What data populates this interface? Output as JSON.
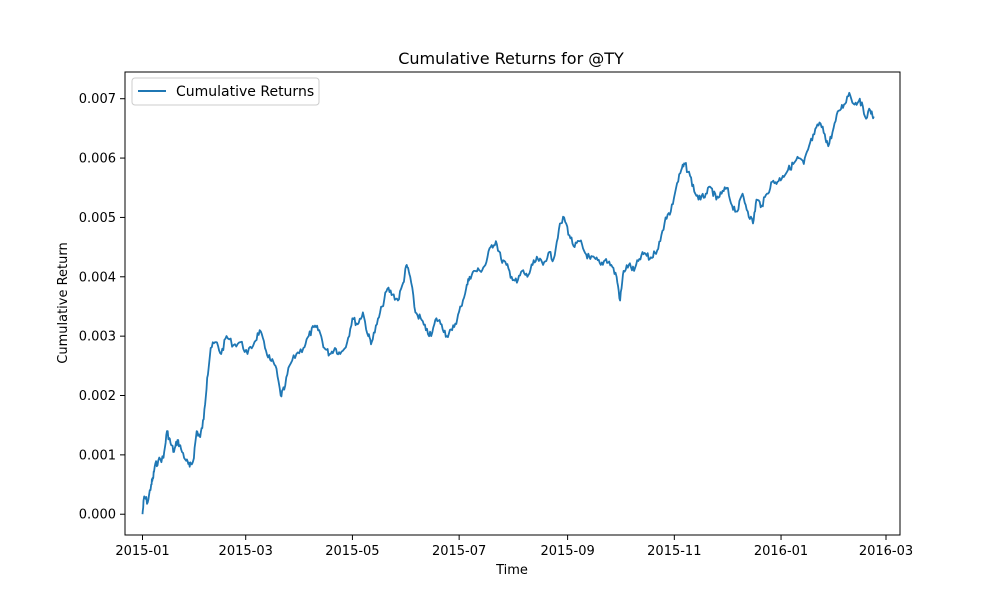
{
  "chart_data": {
    "type": "line",
    "title": "Cumulative Returns for @TY",
    "xlabel": "Time",
    "ylabel": "Cumulative Return",
    "x_ticks": [
      "2015-01",
      "2015-03",
      "2015-05",
      "2015-07",
      "2015-09",
      "2015-11",
      "2016-01",
      "2016-03"
    ],
    "y_ticks": [
      "0.000",
      "0.001",
      "0.002",
      "0.003",
      "0.004",
      "0.005",
      "0.006",
      "0.007"
    ],
    "xlim": [
      "2014-12-22",
      "2016-03-09"
    ],
    "ylim": [
      -0.00035,
      0.00745
    ],
    "grid": false,
    "legend_position": "top-left",
    "series": [
      {
        "name": "Cumulative Returns",
        "color": "#1f77b4",
        "points": [
          [
            "2015-01-01",
            0.0
          ],
          [
            "2015-01-02",
            0.0003
          ],
          [
            "2015-01-04",
            0.0002
          ],
          [
            "2015-01-06",
            0.0005
          ],
          [
            "2015-01-07",
            0.0006
          ],
          [
            "2015-01-08",
            0.0008
          ],
          [
            "2015-01-10",
            0.0009
          ],
          [
            "2015-01-13",
            0.00095
          ],
          [
            "2015-01-15",
            0.0014
          ],
          [
            "2015-01-17",
            0.0012
          ],
          [
            "2015-01-19",
            0.00105
          ],
          [
            "2015-01-21",
            0.00125
          ],
          [
            "2015-01-23",
            0.0011
          ],
          [
            "2015-01-26",
            0.0009
          ],
          [
            "2015-01-28",
            0.0008
          ],
          [
            "2015-01-30",
            0.0009
          ],
          [
            "2015-02-01",
            0.0014
          ],
          [
            "2015-02-03",
            0.0013
          ],
          [
            "2015-02-05",
            0.0016
          ],
          [
            "2015-02-07",
            0.0023
          ],
          [
            "2015-02-09",
            0.0028
          ],
          [
            "2015-02-12",
            0.0029
          ],
          [
            "2015-02-15",
            0.0027
          ],
          [
            "2015-02-18",
            0.003
          ],
          [
            "2015-02-22",
            0.00285
          ],
          [
            "2015-02-26",
            0.0029
          ],
          [
            "2015-03-02",
            0.0027
          ],
          [
            "2015-03-06",
            0.0029
          ],
          [
            "2015-03-09",
            0.0031
          ],
          [
            "2015-03-12",
            0.0028
          ],
          [
            "2015-03-15",
            0.0026
          ],
          [
            "2015-03-18",
            0.0025
          ],
          [
            "2015-03-21",
            0.002
          ],
          [
            "2015-03-23",
            0.0021
          ],
          [
            "2015-03-26",
            0.0025
          ],
          [
            "2015-03-30",
            0.0027
          ],
          [
            "2015-04-03",
            0.0028
          ],
          [
            "2015-04-06",
            0.003
          ],
          [
            "2015-04-09",
            0.00315
          ],
          [
            "2015-04-12",
            0.0031
          ],
          [
            "2015-04-15",
            0.0028
          ],
          [
            "2015-04-18",
            0.0027
          ],
          [
            "2015-04-21",
            0.0028
          ],
          [
            "2015-04-24",
            0.0027
          ],
          [
            "2015-04-28",
            0.0029
          ],
          [
            "2015-05-01",
            0.0033
          ],
          [
            "2015-05-04",
            0.0032
          ],
          [
            "2015-05-07",
            0.0034
          ],
          [
            "2015-05-10",
            0.003
          ],
          [
            "2015-05-12",
            0.0029
          ],
          [
            "2015-05-15",
            0.0032
          ],
          [
            "2015-05-18",
            0.0035
          ],
          [
            "2015-05-21",
            0.0038
          ],
          [
            "2015-05-24",
            0.0037
          ],
          [
            "2015-05-27",
            0.0036
          ],
          [
            "2015-05-30",
            0.0039
          ],
          [
            "2015-06-01",
            0.0042
          ],
          [
            "2015-06-03",
            0.004
          ],
          [
            "2015-06-06",
            0.0034
          ],
          [
            "2015-06-09",
            0.0033
          ],
          [
            "2015-06-12",
            0.0031
          ],
          [
            "2015-06-15",
            0.003
          ],
          [
            "2015-06-18",
            0.0033
          ],
          [
            "2015-06-21",
            0.0032
          ],
          [
            "2015-06-24",
            0.003
          ],
          [
            "2015-06-27",
            0.0031
          ],
          [
            "2015-06-30",
            0.0033
          ],
          [
            "2015-07-02",
            0.0035
          ],
          [
            "2015-07-05",
            0.0038
          ],
          [
            "2015-07-07",
            0.004
          ],
          [
            "2015-07-10",
            0.0041
          ],
          [
            "2015-07-13",
            0.0041
          ],
          [
            "2015-07-16",
            0.0042
          ],
          [
            "2015-07-19",
            0.0045
          ],
          [
            "2015-07-22",
            0.0046
          ],
          [
            "2015-07-25",
            0.0043
          ],
          [
            "2015-07-28",
            0.0042
          ],
          [
            "2015-07-31",
            0.004
          ],
          [
            "2015-08-03",
            0.0039
          ],
          [
            "2015-08-06",
            0.0041
          ],
          [
            "2015-08-09",
            0.004
          ],
          [
            "2015-08-12",
            0.0042
          ],
          [
            "2015-08-15",
            0.0043
          ],
          [
            "2015-08-18",
            0.0042
          ],
          [
            "2015-08-21",
            0.0044
          ],
          [
            "2015-08-24",
            0.0043
          ],
          [
            "2015-08-27",
            0.0048
          ],
          [
            "2015-08-30",
            0.005
          ],
          [
            "2015-09-02",
            0.0047
          ],
          [
            "2015-09-05",
            0.0045
          ],
          [
            "2015-09-08",
            0.0046
          ],
          [
            "2015-09-11",
            0.0044
          ],
          [
            "2015-09-14",
            0.0043
          ],
          [
            "2015-09-17",
            0.0043
          ],
          [
            "2015-09-20",
            0.0042
          ],
          [
            "2015-09-23",
            0.0043
          ],
          [
            "2015-09-26",
            0.0042
          ],
          [
            "2015-09-29",
            0.004
          ],
          [
            "2015-10-01",
            0.0036
          ],
          [
            "2015-10-03",
            0.0041
          ],
          [
            "2015-10-06",
            0.0042
          ],
          [
            "2015-10-09",
            0.0041
          ],
          [
            "2015-10-12",
            0.0043
          ],
          [
            "2015-10-15",
            0.0044
          ],
          [
            "2015-10-18",
            0.0043
          ],
          [
            "2015-10-21",
            0.0044
          ],
          [
            "2015-10-24",
            0.0046
          ],
          [
            "2015-10-27",
            0.005
          ],
          [
            "2015-10-30",
            0.0051
          ],
          [
            "2015-11-02",
            0.0055
          ],
          [
            "2015-11-05",
            0.0058
          ],
          [
            "2015-11-07",
            0.0059
          ],
          [
            "2015-11-10",
            0.0057
          ],
          [
            "2015-11-13",
            0.0054
          ],
          [
            "2015-11-16",
            0.0053
          ],
          [
            "2015-11-19",
            0.0054
          ],
          [
            "2015-11-22",
            0.0055
          ],
          [
            "2015-11-25",
            0.0053
          ],
          [
            "2015-11-28",
            0.0054
          ],
          [
            "2015-12-01",
            0.0055
          ],
          [
            "2015-12-04",
            0.0052
          ],
          [
            "2015-12-07",
            0.0051
          ],
          [
            "2015-12-10",
            0.0054
          ],
          [
            "2015-12-13",
            0.0051
          ],
          [
            "2015-12-16",
            0.0049
          ],
          [
            "2015-12-18",
            0.0053
          ],
          [
            "2015-12-21",
            0.0052
          ],
          [
            "2015-12-24",
            0.0054
          ],
          [
            "2015-12-27",
            0.0056
          ],
          [
            "2015-12-30",
            0.0056
          ],
          [
            "2016-01-02",
            0.0057
          ],
          [
            "2016-01-05",
            0.0058
          ],
          [
            "2016-01-08",
            0.0059
          ],
          [
            "2016-01-11",
            0.006
          ],
          [
            "2016-01-14",
            0.0059
          ],
          [
            "2016-01-17",
            0.0062
          ],
          [
            "2016-01-20",
            0.0064
          ],
          [
            "2016-01-23",
            0.0066
          ],
          [
            "2016-01-26",
            0.0064
          ],
          [
            "2016-01-28",
            0.0062
          ],
          [
            "2016-01-31",
            0.0065
          ],
          [
            "2016-02-03",
            0.0068
          ],
          [
            "2016-02-06",
            0.0069
          ],
          [
            "2016-02-09",
            0.0071
          ],
          [
            "2016-02-12",
            0.0069
          ],
          [
            "2016-02-15",
            0.007
          ],
          [
            "2016-02-18",
            0.0067
          ],
          [
            "2016-02-21",
            0.0068
          ],
          [
            "2016-02-23",
            0.0067
          ]
        ]
      }
    ]
  }
}
